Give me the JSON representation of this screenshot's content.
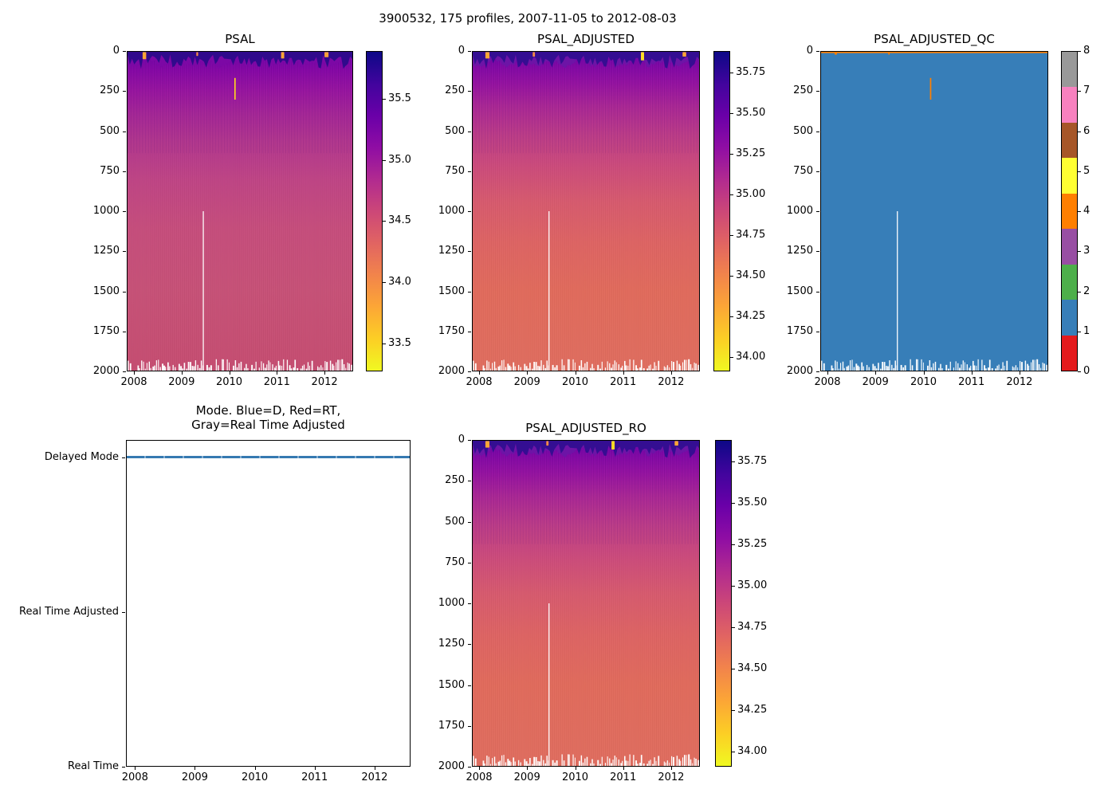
{
  "figure": {
    "suptitle": "3900532, 175 profiles, 2007-11-05 to 2012-08-03"
  },
  "plasma_colormap_top_to_bottom": [
    "#0d0887",
    "#41049d",
    "#6a00a8",
    "#8f0da4",
    "#b12a90",
    "#cc4778",
    "#e16462",
    "#f2844b",
    "#fca636",
    "#fcce25",
    "#f0f921"
  ],
  "chart_data": [
    {
      "title": "PSAL",
      "type": "heatmap",
      "xlim": [
        2007.85,
        2012.6
      ],
      "xtick_values": [
        2008,
        2009,
        2010,
        2011,
        2012
      ],
      "yticks": [
        0,
        250,
        500,
        750,
        1000,
        1250,
        1500,
        1750,
        2000
      ],
      "ylim": [
        2000,
        0
      ],
      "colorbar": {
        "tick_labels": [
          "35.5",
          "35.0",
          "34.5",
          "34.0",
          "33.5"
        ],
        "vmin": 33.27,
        "vmax": 35.89
      },
      "style": {
        "body_gradient": [
          [
            0,
            "#6e02a8"
          ],
          [
            0.06,
            "#8707a6"
          ],
          [
            0.12,
            "#9814a0"
          ],
          [
            0.19,
            "#a52597"
          ],
          [
            0.28,
            "#b2368e"
          ],
          [
            0.4,
            "#bf4485"
          ],
          [
            0.55,
            "#c64d7c"
          ],
          [
            0.75,
            "#c75177"
          ],
          [
            1,
            "#c64d71"
          ]
        ],
        "band_colors": [
          "#7c08a5",
          "#2c0b8a"
        ],
        "surface_spots": [
          {
            "x": 0.075,
            "w": 16,
            "h": 22,
            "color": "#fca636"
          },
          {
            "x": 0.31,
            "w": 8,
            "h": 12,
            "color": "#f58b47"
          },
          {
            "x": 0.69,
            "w": 14,
            "h": 20,
            "color": "#fca636"
          },
          {
            "x": 0.885,
            "w": 18,
            "h": 16,
            "color": "#f7a13b"
          }
        ],
        "anomaly_streak": {
          "x": 0.478,
          "w": 6,
          "y1": 82,
          "y2": 150,
          "color": "#fcd21f"
        },
        "missing_profile_line_x": 0.337
      }
    },
    {
      "title": "PSAL_ADJUSTED",
      "type": "heatmap",
      "xlim": [
        2007.85,
        2012.6
      ],
      "xtick_values": [
        2008,
        2009,
        2010,
        2011,
        2012
      ],
      "yticks": [
        0,
        250,
        500,
        750,
        1000,
        1250,
        1500,
        1750,
        2000
      ],
      "ylim": [
        2000,
        0
      ],
      "colorbar": {
        "tick_labels": [
          "35.75",
          "35.50",
          "35.25",
          "35.00",
          "34.75",
          "34.50",
          "34.25",
          "34.00"
        ],
        "vmin": 33.91,
        "vmax": 35.88
      },
      "style": {
        "body_gradient": [
          [
            0,
            "#6b02a8"
          ],
          [
            0.05,
            "#8408a6"
          ],
          [
            0.1,
            "#9612a1"
          ],
          [
            0.17,
            "#ab2795"
          ],
          [
            0.26,
            "#bd3c88"
          ],
          [
            0.36,
            "#cc4b7b"
          ],
          [
            0.47,
            "#d75a6e"
          ],
          [
            0.6,
            "#de6463"
          ],
          [
            0.75,
            "#e16b5c"
          ],
          [
            1,
            "#e06d5f"
          ]
        ],
        "band_colors": [
          "#6d14a6",
          "#320e90"
        ],
        "surface_spots": [
          {
            "x": 0.065,
            "w": 18,
            "h": 20,
            "color": "#fca636"
          },
          {
            "x": 0.27,
            "w": 10,
            "h": 14,
            "color": "#f58b47"
          },
          {
            "x": 0.75,
            "w": 14,
            "h": 26,
            "color": "#fcdc25"
          },
          {
            "x": 0.935,
            "w": 16,
            "h": 14,
            "color": "#fca636"
          }
        ],
        "anomaly_streak": null,
        "missing_profile_line_x": 0.337
      }
    },
    {
      "title": "PSAL_ADJUSTED_QC",
      "type": "heatmap",
      "xlim": [
        2007.85,
        2012.6
      ],
      "xtick_values": [
        2008,
        2009,
        2010,
        2011,
        2012
      ],
      "yticks": [
        0,
        250,
        500,
        750,
        1000,
        1250,
        1500,
        1750,
        2000
      ],
      "ylim": [
        2000,
        0
      ],
      "categories": [
        0,
        1,
        2,
        3,
        4,
        5,
        6,
        7,
        8
      ],
      "colorbar": {
        "tick_labels": [
          "0",
          "1",
          "2",
          "3",
          "4",
          "5",
          "6",
          "7",
          "8"
        ],
        "vmin": 0,
        "vmax": 8
      },
      "qc_colors_low_to_high": [
        "#e41a1c",
        "#377eb8",
        "#4daf4a",
        "#984ea3",
        "#ff7f00",
        "#ffff33",
        "#a65628",
        "#f781bf",
        "#999999"
      ],
      "dominant_qc_value": 1,
      "style": {
        "field_color": "#377eb8",
        "surface_line_color": "#ff7f00",
        "surface_spots": [
          {
            "x": 0.065,
            "w": 10,
            "h": 8,
            "color": "#ff7f00"
          },
          {
            "x": 0.3,
            "w": 6,
            "h": 8,
            "color": "#ff7f00"
          }
        ],
        "anomaly_streak": {
          "x": 0.484,
          "w": 6,
          "y1": 82,
          "y2": 150,
          "color": "#ff7f00"
        },
        "missing_profile_line_x": 0.337
      }
    },
    {
      "title_line1": "Mode. Blue=D, Red=RT,",
      "title_line2": "Gray=Real Time Adjusted",
      "type": "line",
      "xlim": [
        2007.85,
        2012.6
      ],
      "xtick_values": [
        2008,
        2009,
        2010,
        2011,
        2012
      ],
      "ytick_labels": [
        "Delayed Mode",
        "Real Time Adjusted",
        "Real Time"
      ],
      "series": [
        {
          "name": "mode",
          "constant_value": "Delayed Mode",
          "x_range": [
            2007.85,
            2012.6
          ],
          "color": "#3579b1"
        }
      ]
    },
    {
      "title": "PSAL_ADJUSTED_RO",
      "type": "heatmap",
      "xlim": [
        2007.85,
        2012.6
      ],
      "xtick_values": [
        2008,
        2009,
        2010,
        2011,
        2012
      ],
      "yticks": [
        0,
        250,
        500,
        750,
        1000,
        1250,
        1500,
        1750,
        2000
      ],
      "ylim": [
        2000,
        0
      ],
      "colorbar": {
        "tick_labels": [
          "35.75",
          "35.50",
          "35.25",
          "35.00",
          "34.75",
          "34.50",
          "34.25",
          "34.00"
        ],
        "vmin": 33.91,
        "vmax": 35.88
      },
      "style": {
        "body_gradient": [
          [
            0,
            "#6b02a8"
          ],
          [
            0.05,
            "#8408a6"
          ],
          [
            0.1,
            "#9612a1"
          ],
          [
            0.17,
            "#ab2795"
          ],
          [
            0.26,
            "#bd3c88"
          ],
          [
            0.36,
            "#cc4b7b"
          ],
          [
            0.47,
            "#d75a6e"
          ],
          [
            0.6,
            "#de6463"
          ],
          [
            0.75,
            "#e16b5c"
          ],
          [
            1,
            "#e06d5f"
          ]
        ],
        "band_colors": [
          "#6d14a6",
          "#320e90"
        ],
        "surface_spots": [
          {
            "x": 0.065,
            "w": 18,
            "h": 20,
            "color": "#fca636"
          },
          {
            "x": 0.33,
            "w": 10,
            "h": 14,
            "color": "#f58b47"
          },
          {
            "x": 0.62,
            "w": 14,
            "h": 26,
            "color": "#fcdc25"
          },
          {
            "x": 0.9,
            "w": 16,
            "h": 14,
            "color": "#fca636"
          }
        ],
        "anomaly_streak": null,
        "missing_profile_line_x": 0.337
      }
    }
  ]
}
